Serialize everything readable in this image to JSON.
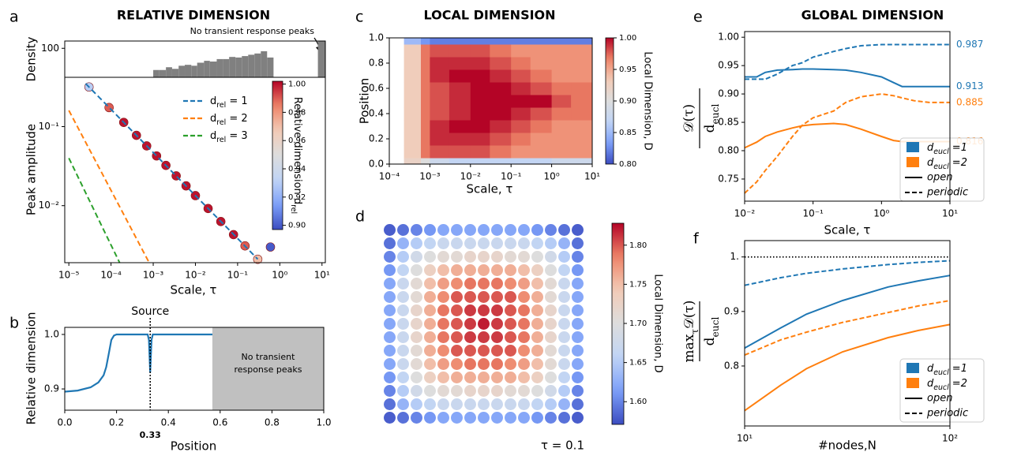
{
  "chart_data": [
    {
      "type": "histogram",
      "panel": "a",
      "title": "RELATIVE DIMENSION",
      "ylabel": "Density",
      "color": "#808080",
      "xscale": "log",
      "yscale": "log",
      "xlim": [
        8e-06,
        12
      ],
      "ylim": [
        20,
        150
      ],
      "yticks": [
        100
      ],
      "bins": [
        0.001,
        0.0014,
        0.002,
        0.0028,
        0.004,
        0.0056,
        0.008,
        0.011,
        0.016,
        0.022,
        0.032,
        0.045,
        0.063,
        0.089,
        0.126,
        0.178,
        0.251,
        0.355,
        0.5,
        0.71,
        8,
        12
      ],
      "counts": [
        30,
        30,
        35,
        32,
        38,
        40,
        38,
        45,
        50,
        48,
        55,
        55,
        62,
        60,
        65,
        70,
        75,
        85,
        60,
        0,
        150
      ],
      "annotation": "No transient response peaks"
    },
    {
      "type": "line",
      "xlabel": "Scale, τ",
      "ylabel": "Peak amplitude",
      "xscale": "log",
      "yscale": "log",
      "xlim": [
        8e-06,
        12
      ],
      "ylim": [
        0.0019,
        0.42
      ],
      "xticks": [
        {
          "value": 1e-05,
          "label": "10⁻⁵"
        },
        {
          "value": 0.0001,
          "label": "10⁻⁴"
        },
        {
          "value": 0.001,
          "label": "10⁻³"
        },
        {
          "value": 0.01,
          "label": "10⁻²"
        },
        {
          "value": 0.1,
          "label": "10⁻¹"
        },
        {
          "value": 1,
          "label": "10⁰"
        },
        {
          "value": 10,
          "label": "10¹"
        }
      ],
      "yticks": [
        {
          "value": 0.01,
          "label": "10⁻²"
        },
        {
          "value": 0.1,
          "label": "10⁻¹"
        }
      ],
      "series": [
        {
          "name": "d_{rel} = 1",
          "color": "#1f77b4",
          "x": [
            2.5e-05,
            0.0001,
            0.001,
            0.01,
            0.1,
            0.3
          ],
          "values": [
            0.35,
            0.165,
            0.047,
            0.0134,
            0.00385,
            0.0021
          ]
        },
        {
          "name": "d_{rel} = 2",
          "color": "#ff7f0e",
          "x": [
            1e-05,
            0.0001,
            0.0008
          ],
          "values": [
            0.16,
            0.0156,
            0.0019
          ]
        },
        {
          "name": "d_{rel} = 3",
          "color": "#2ca02c",
          "x": [
            1e-05,
            5e-05,
            0.00016
          ],
          "values": [
            0.04,
            0.0068,
            0.0019
          ]
        }
      ],
      "markers": {
        "x": [
          3e-05,
          9e-05,
          0.0002,
          0.0004,
          0.0007,
          0.0012,
          0.002,
          0.0035,
          0.006,
          0.01,
          0.02,
          0.04,
          0.08,
          0.15,
          0.3,
          0.6
        ],
        "y": [
          0.317,
          0.174,
          0.113,
          0.0775,
          0.057,
          0.0426,
          0.0323,
          0.0238,
          0.0178,
          0.0134,
          0.0092,
          0.0063,
          0.0043,
          0.0031,
          0.0021,
          0.003
        ],
        "color_values": [
          0.93,
          0.99,
          1.0,
          1.0,
          1.0,
          1.0,
          1.0,
          1.0,
          1.0,
          1.0,
          1.0,
          1.0,
          1.0,
          0.99,
          0.97,
          0.9
        ]
      },
      "colorbar": {
        "label": "Relative dimension d_{rel}",
        "colormap": "coolwarm",
        "zlim": [
          0.897,
          1.002
        ],
        "ticks": [
          {
            "value": 0.9,
            "label": "0.90"
          },
          0.92,
          0.94,
          0.96,
          0.98,
          {
            "value": 1,
            "label": "1.00"
          }
        ]
      }
    },
    {
      "type": "line",
      "panel": "b",
      "xlabel": "Position",
      "ylabel": "Relative dimension",
      "color": "#1f77b4",
      "xlim": [
        0,
        1
      ],
      "ylim": [
        0.861,
        1.013
      ],
      "xticks": [
        {
          "value": 0,
          "label": "0.0"
        },
        0.2,
        0.4,
        0.6,
        0.8,
        {
          "value": 1,
          "label": "1.0"
        }
      ],
      "yticks": [
        0.9,
        {
          "value": 1,
          "label": "1.0"
        }
      ],
      "x": [
        0,
        0.05,
        0.1,
        0.13,
        0.15,
        0.16,
        0.17,
        0.18,
        0.19,
        0.2,
        0.25,
        0.32,
        0.325,
        0.33,
        0.335,
        0.34,
        0.35,
        0.45,
        0.57
      ],
      "values": [
        0.895,
        0.897,
        0.903,
        0.912,
        0.925,
        0.94,
        0.965,
        0.99,
        0.998,
        1.0,
        1.0,
        1.0,
        0.99,
        0.93,
        0.99,
        1.0,
        1.0,
        1.0,
        1.0
      ],
      "source": {
        "x": 0.33,
        "label": "Source"
      },
      "shaded": {
        "from": 0.57,
        "to": 1.0,
        "label": [
          "No transient",
          "response peaks"
        ]
      }
    },
    {
      "type": "heatmap",
      "panel": "c",
      "title": "LOCAL DIMENSION",
      "xlabel": "Scale, τ",
      "ylabel": "Position",
      "xscale": "log",
      "xlim": [
        0.0001,
        10
      ],
      "ylim": [
        0,
        1
      ],
      "xticks": [
        {
          "value": 0.0001,
          "label": "10⁻⁴"
        },
        {
          "value": 0.001,
          "label": "10⁻³"
        },
        {
          "value": 0.01,
          "label": "10⁻²"
        },
        {
          "value": 0.1,
          "label": "10⁻¹"
        },
        {
          "value": 1,
          "label": "10⁰"
        },
        {
          "value": 10,
          "label": "10¹"
        }
      ],
      "yticks": [
        {
          "value": 0,
          "label": "0.0"
        },
        0.2,
        0.4,
        0.6,
        0.8,
        {
          "value": 1,
          "label": "1.0"
        }
      ],
      "x_bins": [
        0.00023,
        0.0006,
        0.001,
        0.003,
        0.01,
        0.03,
        0.1,
        0.3,
        1,
        3,
        10
      ],
      "y_bins": [
        0,
        0.05,
        0.15,
        0.25,
        0.35,
        0.45,
        0.55,
        0.65,
        0.75,
        0.85,
        0.95,
        1.0
      ],
      "values": [
        [
          0.92,
          0.9,
          0.88,
          0.87,
          0.87,
          0.87,
          0.87,
          0.87,
          0.88,
          0.88
        ],
        [
          0.93,
          0.97,
          0.98,
          0.98,
          0.98,
          0.97,
          0.96,
          0.96,
          0.96,
          0.96
        ],
        [
          0.93,
          0.97,
          0.99,
          0.99,
          0.99,
          0.98,
          0.97,
          0.96,
          0.96,
          0.96
        ],
        [
          0.93,
          0.97,
          0.99,
          1.0,
          1.0,
          0.99,
          0.98,
          0.97,
          0.96,
          0.96
        ],
        [
          0.93,
          0.97,
          0.98,
          0.99,
          1.0,
          1.0,
          0.99,
          0.98,
          0.97,
          0.97
        ],
        [
          0.93,
          0.97,
          0.98,
          0.99,
          1.0,
          1.0,
          1.0,
          1.0,
          0.98,
          0.97
        ],
        [
          0.93,
          0.97,
          0.98,
          0.99,
          1.0,
          1.0,
          0.99,
          0.98,
          0.97,
          0.97
        ],
        [
          0.93,
          0.97,
          0.99,
          1.0,
          1.0,
          0.99,
          0.98,
          0.97,
          0.96,
          0.96
        ],
        [
          0.93,
          0.97,
          0.99,
          0.99,
          0.99,
          0.98,
          0.97,
          0.96,
          0.96,
          0.96
        ],
        [
          0.93,
          0.97,
          0.98,
          0.98,
          0.98,
          0.97,
          0.96,
          0.96,
          0.96,
          0.96
        ],
        [
          0.85,
          0.83,
          0.82,
          0.82,
          0.82,
          0.82,
          0.82,
          0.82,
          0.82,
          0.82
        ]
      ],
      "colorbar": {
        "label": "Local Dimension, D",
        "colormap": "coolwarm",
        "zlim": [
          0.8,
          1.0
        ],
        "ticks": [
          {
            "value": 0.8,
            "label": "0.80"
          },
          0.85,
          {
            "value": 0.9,
            "label": "0.90"
          },
          0.95,
          {
            "value": 1,
            "label": "1.00"
          }
        ]
      }
    },
    {
      "type": "dotmap",
      "panel": "d",
      "caption": "τ = 0.1",
      "values": [
        [
          1.58,
          1.59,
          1.6,
          1.61,
          1.62,
          1.62,
          1.62,
          1.62,
          1.62,
          1.62,
          1.62,
          1.61,
          1.6,
          1.59,
          1.58
        ],
        [
          1.59,
          1.63,
          1.65,
          1.66,
          1.67,
          1.67,
          1.67,
          1.67,
          1.67,
          1.67,
          1.67,
          1.66,
          1.65,
          1.63,
          1.59
        ],
        [
          1.6,
          1.65,
          1.68,
          1.7,
          1.71,
          1.71,
          1.72,
          1.72,
          1.72,
          1.71,
          1.71,
          1.7,
          1.68,
          1.65,
          1.6
        ],
        [
          1.61,
          1.66,
          1.7,
          1.73,
          1.75,
          1.76,
          1.76,
          1.76,
          1.76,
          1.76,
          1.75,
          1.73,
          1.7,
          1.66,
          1.61
        ],
        [
          1.62,
          1.67,
          1.71,
          1.75,
          1.77,
          1.78,
          1.79,
          1.79,
          1.79,
          1.78,
          1.77,
          1.75,
          1.71,
          1.67,
          1.62
        ],
        [
          1.62,
          1.67,
          1.71,
          1.76,
          1.78,
          1.8,
          1.8,
          1.8,
          1.8,
          1.8,
          1.78,
          1.76,
          1.71,
          1.67,
          1.62
        ],
        [
          1.62,
          1.67,
          1.72,
          1.76,
          1.79,
          1.8,
          1.81,
          1.81,
          1.81,
          1.8,
          1.79,
          1.76,
          1.72,
          1.67,
          1.62
        ],
        [
          1.62,
          1.67,
          1.72,
          1.76,
          1.79,
          1.8,
          1.81,
          1.82,
          1.81,
          1.8,
          1.79,
          1.76,
          1.72,
          1.67,
          1.62
        ],
        [
          1.62,
          1.67,
          1.72,
          1.76,
          1.79,
          1.8,
          1.81,
          1.81,
          1.81,
          1.8,
          1.79,
          1.76,
          1.72,
          1.67,
          1.62
        ],
        [
          1.62,
          1.67,
          1.71,
          1.76,
          1.78,
          1.8,
          1.8,
          1.8,
          1.8,
          1.8,
          1.78,
          1.76,
          1.71,
          1.67,
          1.62
        ],
        [
          1.62,
          1.67,
          1.71,
          1.75,
          1.77,
          1.78,
          1.79,
          1.79,
          1.79,
          1.78,
          1.77,
          1.75,
          1.71,
          1.67,
          1.62
        ],
        [
          1.61,
          1.66,
          1.7,
          1.73,
          1.75,
          1.76,
          1.76,
          1.76,
          1.76,
          1.76,
          1.75,
          1.73,
          1.7,
          1.66,
          1.61
        ],
        [
          1.6,
          1.65,
          1.68,
          1.7,
          1.71,
          1.71,
          1.72,
          1.72,
          1.72,
          1.71,
          1.71,
          1.7,
          1.68,
          1.65,
          1.6
        ],
        [
          1.59,
          1.63,
          1.65,
          1.66,
          1.67,
          1.67,
          1.67,
          1.67,
          1.67,
          1.67,
          1.67,
          1.66,
          1.65,
          1.63,
          1.59
        ],
        [
          1.58,
          1.59,
          1.6,
          1.61,
          1.62,
          1.62,
          1.62,
          1.62,
          1.62,
          1.62,
          1.62,
          1.61,
          1.6,
          1.59,
          1.58
        ]
      ],
      "colorbar": {
        "label": "Local Dimension, D",
        "colormap": "coolwarm",
        "zlim": [
          1.571,
          1.828
        ],
        "ticks": [
          {
            "value": 1.6,
            "label": "1.60"
          },
          1.65,
          {
            "value": 1.7,
            "label": "1.70"
          },
          1.75,
          {
            "value": 1.8,
            "label": "1.80"
          }
        ]
      }
    },
    {
      "type": "line",
      "panel": "e",
      "title": "GLOBAL DIMENSION",
      "xlabel": "Scale, τ",
      "ylabel": {
        "numerator": "𝒟(τ)",
        "denominator": "d_{eucl}"
      },
      "xscale": "log",
      "xlim": [
        0.01,
        10
      ],
      "ylim": [
        0.711,
        1.01
      ],
      "xticks": [
        {
          "value": 0.01,
          "label": "10⁻²"
        },
        {
          "value": 0.1,
          "label": "10⁻¹"
        },
        {
          "value": 1,
          "label": "10⁰"
        },
        {
          "value": 10,
          "label": "10¹"
        }
      ],
      "yticks": [
        0.75,
        {
          "value": 0.8,
          "label": "0.80"
        },
        0.85,
        {
          "value": 0.9,
          "label": "0.90"
        },
        0.95,
        {
          "value": 1,
          "label": "1.00"
        }
      ],
      "x": [
        0.01,
        0.015,
        0.02,
        0.03,
        0.05,
        0.07,
        0.1,
        0.2,
        0.3,
        0.5,
        1,
        1.5,
        2,
        3,
        5,
        10
      ],
      "series": [
        {
          "color": "#1f77b4",
          "dash": "solid",
          "end_value": 0.913,
          "values": [
            0.93,
            0.93,
            0.938,
            0.942,
            0.943,
            0.944,
            0.944,
            0.943,
            0.942,
            0.938,
            0.93,
            0.92,
            0.913,
            0.913,
            0.913,
            0.913
          ]
        },
        {
          "color": "#1f77b4",
          "dash": "dashed",
          "end_value": 0.987,
          "values": [
            0.926,
            0.926,
            0.926,
            0.935,
            0.95,
            0.955,
            0.965,
            0.975,
            0.98,
            0.985,
            0.987,
            0.987,
            0.987,
            0.987,
            0.987,
            0.987
          ]
        },
        {
          "color": "#ff7f0e",
          "dash": "solid",
          "end_value": 0.816,
          "values": [
            0.805,
            0.815,
            0.825,
            0.833,
            0.84,
            0.844,
            0.846,
            0.848,
            0.846,
            0.838,
            0.825,
            0.818,
            0.816,
            0.816,
            0.816,
            0.816
          ]
        },
        {
          "color": "#ff7f0e",
          "dash": "dashed",
          "end_value": 0.885,
          "values": [
            0.725,
            0.745,
            0.765,
            0.79,
            0.825,
            0.845,
            0.858,
            0.87,
            0.885,
            0.895,
            0.9,
            0.897,
            0.893,
            0.888,
            0.885,
            0.885
          ]
        }
      ],
      "legend": [
        {
          "label": "d_{eucl} =1",
          "color": "#1f77b4"
        },
        {
          "label": "d_{eucl} =2",
          "color": "#ff7f0e"
        },
        {
          "label": "open",
          "dash": "solid"
        },
        {
          "label": "periodic",
          "dash": "dashed"
        }
      ]
    },
    {
      "type": "line",
      "panel": "f",
      "xlabel": "#nodes,N",
      "ylabel": {
        "numerator": "max_{τ}𝒟(τ)",
        "denominator": "d_{eucl}"
      },
      "xscale": "log",
      "xlim": [
        10,
        100
      ],
      "ylim": [
        0.69,
        1.03
      ],
      "xticks": [
        {
          "value": 10,
          "label": "10¹"
        },
        {
          "value": 100,
          "label": "10²"
        }
      ],
      "yticks": [
        0.8,
        0.9,
        {
          "value": 1,
          "label": "1."
        }
      ],
      "reference_line": 1,
      "x": [
        10,
        15,
        20,
        30,
        50,
        70,
        100
      ],
      "series": [
        {
          "color": "#1f77b4",
          "dash": "solid",
          "values": [
            0.833,
            0.87,
            0.895,
            0.92,
            0.945,
            0.956,
            0.966
          ]
        },
        {
          "color": "#1f77b4",
          "dash": "dashed",
          "values": [
            0.948,
            0.962,
            0.97,
            0.978,
            0.986,
            0.99,
            0.993
          ]
        },
        {
          "color": "#ff7f0e",
          "dash": "solid",
          "values": [
            0.718,
            0.765,
            0.795,
            0.826,
            0.852,
            0.865,
            0.876
          ]
        },
        {
          "color": "#ff7f0e",
          "dash": "dashed",
          "values": [
            0.82,
            0.848,
            0.862,
            0.88,
            0.898,
            0.91,
            0.92
          ]
        }
      ],
      "legend": [
        {
          "label": "d_{eucl} =1",
          "color": "#1f77b4"
        },
        {
          "label": "d_{eucl} =2",
          "color": "#ff7f0e"
        },
        {
          "label": "open",
          "dash": "solid"
        },
        {
          "label": "periodic",
          "dash": "dashed"
        }
      ]
    }
  ]
}
